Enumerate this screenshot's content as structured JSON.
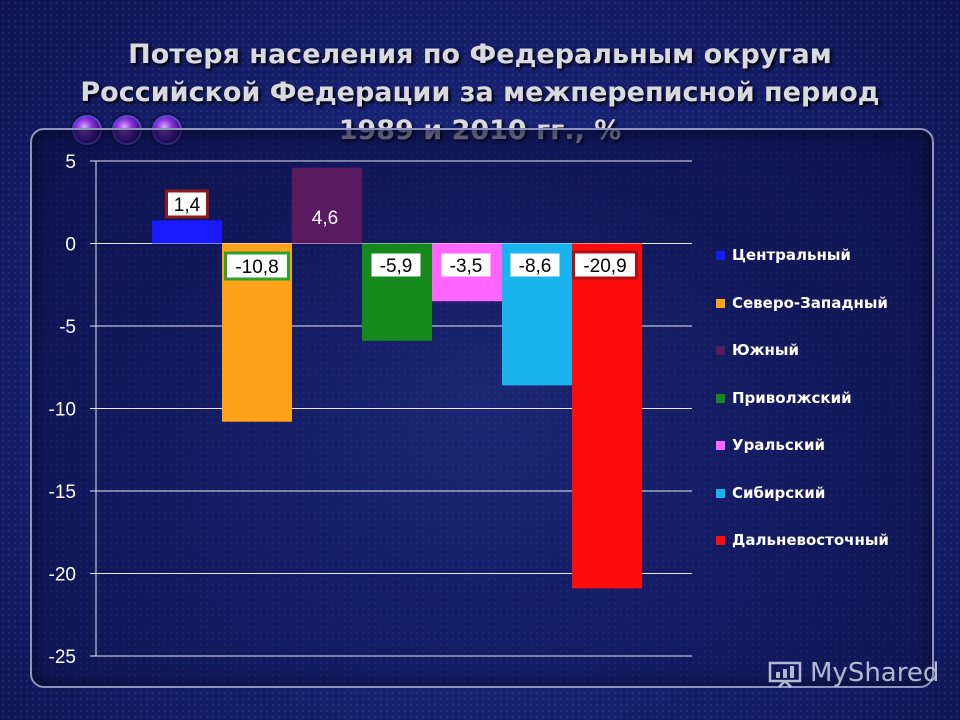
{
  "title": "Потеря населения по Федеральным округам Российской Федерации за межпереписной период 1989 и 2010 гг., %",
  "watermark": "MyShared",
  "chart_data": {
    "type": "bar",
    "title": "",
    "xlabel": "",
    "ylabel": "",
    "ylim": [
      -25,
      5
    ],
    "yticks": [
      5,
      0,
      -5,
      -10,
      -15,
      -20,
      -25
    ],
    "ytick_labels": [
      "5",
      "0",
      "-5",
      "-10",
      "-15",
      "-20",
      "-25"
    ],
    "grid": true,
    "legend_position": "right",
    "series": [
      {
        "name": "Центральный",
        "value": 1.4,
        "label": "1,4",
        "color": "#1a1aff",
        "label_border": "#8b1a1a"
      },
      {
        "name": "Северо-Западный",
        "value": -10.8,
        "label": "-10,8",
        "color": "#ffa21a",
        "label_border": "#2ea02e"
      },
      {
        "name": "Южный",
        "value": 4.6,
        "label": "4,6",
        "color": "#5a1a60",
        "label_border": "#5a1a60"
      },
      {
        "name": "Приволжский",
        "value": -5.9,
        "label": "-5,9",
        "color": "#16891c",
        "label_border": "#16891c"
      },
      {
        "name": "Уральский",
        "value": -3.5,
        "label": "-3,5",
        "color": "#ff66ff",
        "label_border": "#ff66ff"
      },
      {
        "name": "Сибирский",
        "value": -8.6,
        "label": "-8,6",
        "color": "#19b3ee",
        "label_border": "#19b3ee"
      },
      {
        "name": "Дальневосточный",
        "value": -20.9,
        "label": "-20,9",
        "color": "#ff0d0d",
        "label_border": "#b01010"
      }
    ]
  }
}
